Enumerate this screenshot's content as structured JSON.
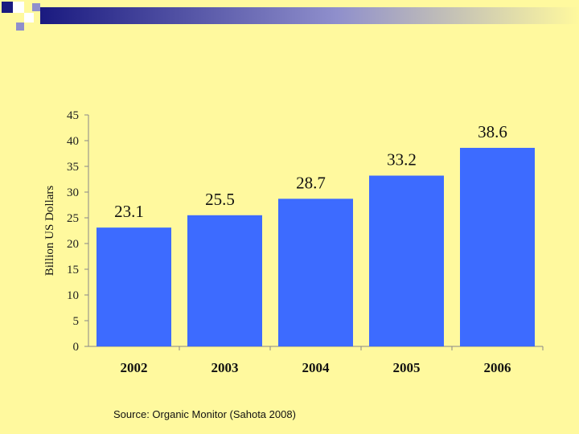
{
  "colors": {
    "background": "#fff99e",
    "bar": "#3d6bff",
    "banner_dark": "#1a1a80",
    "banner_light": "#ffffff"
  },
  "source_text": "Source: Organic Monitor (Sahota 2008)",
  "chart_data": {
    "type": "bar",
    "title": "",
    "xlabel": "",
    "ylabel": "Billion US Dollars",
    "categories": [
      "2002",
      "2003",
      "2004",
      "2005",
      "2006"
    ],
    "values": [
      23.1,
      25.5,
      28.7,
      33.2,
      38.6
    ],
    "value_labels": [
      "23.1",
      "25.5",
      "28.7",
      "33.2",
      "38.6"
    ],
    "ylim": [
      0,
      45
    ],
    "yticks": [
      0,
      5,
      10,
      15,
      20,
      25,
      30,
      35,
      40,
      45
    ],
    "grid": false,
    "legend": "none"
  }
}
